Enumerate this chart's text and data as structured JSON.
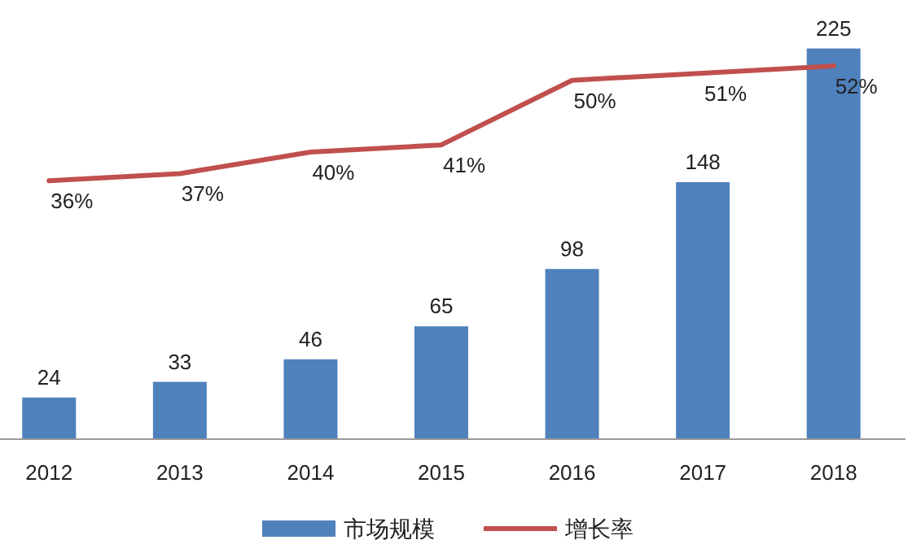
{
  "chart_data": {
    "type": "bar",
    "categories": [
      "2012",
      "2013",
      "2014",
      "2015",
      "2016",
      "2017",
      "2018"
    ],
    "series": [
      {
        "name": "市场规模",
        "color": "#4f81bd",
        "values": [
          24,
          33,
          46,
          65,
          98,
          148,
          225
        ]
      },
      {
        "name": "增长率",
        "type": "line",
        "axis": "y2",
        "color": "#c0504d",
        "values": [
          36,
          37,
          40,
          41,
          50,
          51,
          52
        ],
        "value_labels": [
          "36%",
          "37%",
          "40%",
          "41%",
          "50%",
          "51%",
          "52%"
        ]
      }
    ],
    "data_labels": true,
    "legend": "bottom"
  }
}
